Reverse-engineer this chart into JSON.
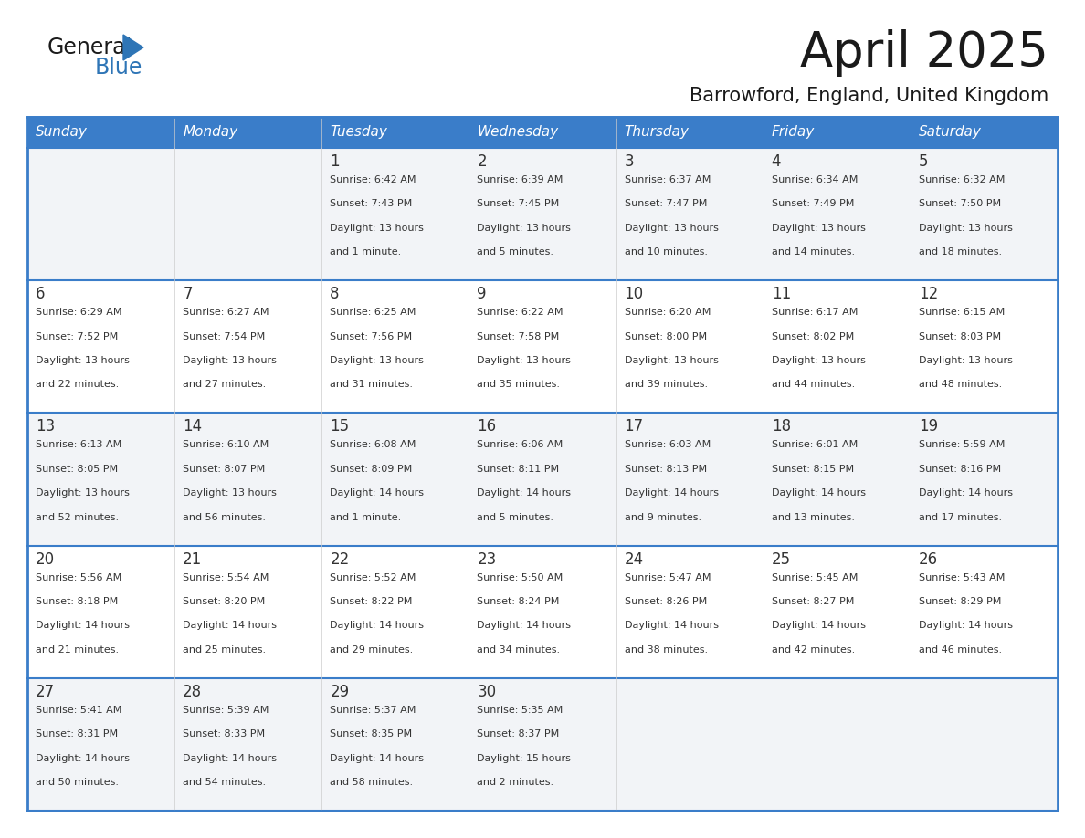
{
  "title": "April 2025",
  "subtitle": "Barrowford, England, United Kingdom",
  "days_of_week": [
    "Sunday",
    "Monday",
    "Tuesday",
    "Wednesday",
    "Thursday",
    "Friday",
    "Saturday"
  ],
  "header_bg": "#3A7DC9",
  "header_text_color": "#FFFFFF",
  "cell_bg_even": "#F2F4F7",
  "cell_bg_odd": "#FFFFFF",
  "border_color": "#3A7DC9",
  "divider_color": "#3A7DC9",
  "text_color": "#333333",
  "title_color": "#1a1a1a",
  "generalblue_black": "#1a1a1a",
  "generalblue_blue": "#2E75B6",
  "logo_triangle_color": "#2E75B6",
  "calendar": [
    [
      {
        "day": "",
        "sunrise": "",
        "sunset": "",
        "daylight": ""
      },
      {
        "day": "",
        "sunrise": "",
        "sunset": "",
        "daylight": ""
      },
      {
        "day": "1",
        "sunrise": "Sunrise: 6:42 AM",
        "sunset": "Sunset: 7:43 PM",
        "daylight": "Daylight: 13 hours\nand 1 minute."
      },
      {
        "day": "2",
        "sunrise": "Sunrise: 6:39 AM",
        "sunset": "Sunset: 7:45 PM",
        "daylight": "Daylight: 13 hours\nand 5 minutes."
      },
      {
        "day": "3",
        "sunrise": "Sunrise: 6:37 AM",
        "sunset": "Sunset: 7:47 PM",
        "daylight": "Daylight: 13 hours\nand 10 minutes."
      },
      {
        "day": "4",
        "sunrise": "Sunrise: 6:34 AM",
        "sunset": "Sunset: 7:49 PM",
        "daylight": "Daylight: 13 hours\nand 14 minutes."
      },
      {
        "day": "5",
        "sunrise": "Sunrise: 6:32 AM",
        "sunset": "Sunset: 7:50 PM",
        "daylight": "Daylight: 13 hours\nand 18 minutes."
      }
    ],
    [
      {
        "day": "6",
        "sunrise": "Sunrise: 6:29 AM",
        "sunset": "Sunset: 7:52 PM",
        "daylight": "Daylight: 13 hours\nand 22 minutes."
      },
      {
        "day": "7",
        "sunrise": "Sunrise: 6:27 AM",
        "sunset": "Sunset: 7:54 PM",
        "daylight": "Daylight: 13 hours\nand 27 minutes."
      },
      {
        "day": "8",
        "sunrise": "Sunrise: 6:25 AM",
        "sunset": "Sunset: 7:56 PM",
        "daylight": "Daylight: 13 hours\nand 31 minutes."
      },
      {
        "day": "9",
        "sunrise": "Sunrise: 6:22 AM",
        "sunset": "Sunset: 7:58 PM",
        "daylight": "Daylight: 13 hours\nand 35 minutes."
      },
      {
        "day": "10",
        "sunrise": "Sunrise: 6:20 AM",
        "sunset": "Sunset: 8:00 PM",
        "daylight": "Daylight: 13 hours\nand 39 minutes."
      },
      {
        "day": "11",
        "sunrise": "Sunrise: 6:17 AM",
        "sunset": "Sunset: 8:02 PM",
        "daylight": "Daylight: 13 hours\nand 44 minutes."
      },
      {
        "day": "12",
        "sunrise": "Sunrise: 6:15 AM",
        "sunset": "Sunset: 8:03 PM",
        "daylight": "Daylight: 13 hours\nand 48 minutes."
      }
    ],
    [
      {
        "day": "13",
        "sunrise": "Sunrise: 6:13 AM",
        "sunset": "Sunset: 8:05 PM",
        "daylight": "Daylight: 13 hours\nand 52 minutes."
      },
      {
        "day": "14",
        "sunrise": "Sunrise: 6:10 AM",
        "sunset": "Sunset: 8:07 PM",
        "daylight": "Daylight: 13 hours\nand 56 minutes."
      },
      {
        "day": "15",
        "sunrise": "Sunrise: 6:08 AM",
        "sunset": "Sunset: 8:09 PM",
        "daylight": "Daylight: 14 hours\nand 1 minute."
      },
      {
        "day": "16",
        "sunrise": "Sunrise: 6:06 AM",
        "sunset": "Sunset: 8:11 PM",
        "daylight": "Daylight: 14 hours\nand 5 minutes."
      },
      {
        "day": "17",
        "sunrise": "Sunrise: 6:03 AM",
        "sunset": "Sunset: 8:13 PM",
        "daylight": "Daylight: 14 hours\nand 9 minutes."
      },
      {
        "day": "18",
        "sunrise": "Sunrise: 6:01 AM",
        "sunset": "Sunset: 8:15 PM",
        "daylight": "Daylight: 14 hours\nand 13 minutes."
      },
      {
        "day": "19",
        "sunrise": "Sunrise: 5:59 AM",
        "sunset": "Sunset: 8:16 PM",
        "daylight": "Daylight: 14 hours\nand 17 minutes."
      }
    ],
    [
      {
        "day": "20",
        "sunrise": "Sunrise: 5:56 AM",
        "sunset": "Sunset: 8:18 PM",
        "daylight": "Daylight: 14 hours\nand 21 minutes."
      },
      {
        "day": "21",
        "sunrise": "Sunrise: 5:54 AM",
        "sunset": "Sunset: 8:20 PM",
        "daylight": "Daylight: 14 hours\nand 25 minutes."
      },
      {
        "day": "22",
        "sunrise": "Sunrise: 5:52 AM",
        "sunset": "Sunset: 8:22 PM",
        "daylight": "Daylight: 14 hours\nand 29 minutes."
      },
      {
        "day": "23",
        "sunrise": "Sunrise: 5:50 AM",
        "sunset": "Sunset: 8:24 PM",
        "daylight": "Daylight: 14 hours\nand 34 minutes."
      },
      {
        "day": "24",
        "sunrise": "Sunrise: 5:47 AM",
        "sunset": "Sunset: 8:26 PM",
        "daylight": "Daylight: 14 hours\nand 38 minutes."
      },
      {
        "day": "25",
        "sunrise": "Sunrise: 5:45 AM",
        "sunset": "Sunset: 8:27 PM",
        "daylight": "Daylight: 14 hours\nand 42 minutes."
      },
      {
        "day": "26",
        "sunrise": "Sunrise: 5:43 AM",
        "sunset": "Sunset: 8:29 PM",
        "daylight": "Daylight: 14 hours\nand 46 minutes."
      }
    ],
    [
      {
        "day": "27",
        "sunrise": "Sunrise: 5:41 AM",
        "sunset": "Sunset: 8:31 PM",
        "daylight": "Daylight: 14 hours\nand 50 minutes."
      },
      {
        "day": "28",
        "sunrise": "Sunrise: 5:39 AM",
        "sunset": "Sunset: 8:33 PM",
        "daylight": "Daylight: 14 hours\nand 54 minutes."
      },
      {
        "day": "29",
        "sunrise": "Sunrise: 5:37 AM",
        "sunset": "Sunset: 8:35 PM",
        "daylight": "Daylight: 14 hours\nand 58 minutes."
      },
      {
        "day": "30",
        "sunrise": "Sunrise: 5:35 AM",
        "sunset": "Sunset: 8:37 PM",
        "daylight": "Daylight: 15 hours\nand 2 minutes."
      },
      {
        "day": "",
        "sunrise": "",
        "sunset": "",
        "daylight": ""
      },
      {
        "day": "",
        "sunrise": "",
        "sunset": "",
        "daylight": ""
      },
      {
        "day": "",
        "sunrise": "",
        "sunset": "",
        "daylight": ""
      }
    ]
  ]
}
